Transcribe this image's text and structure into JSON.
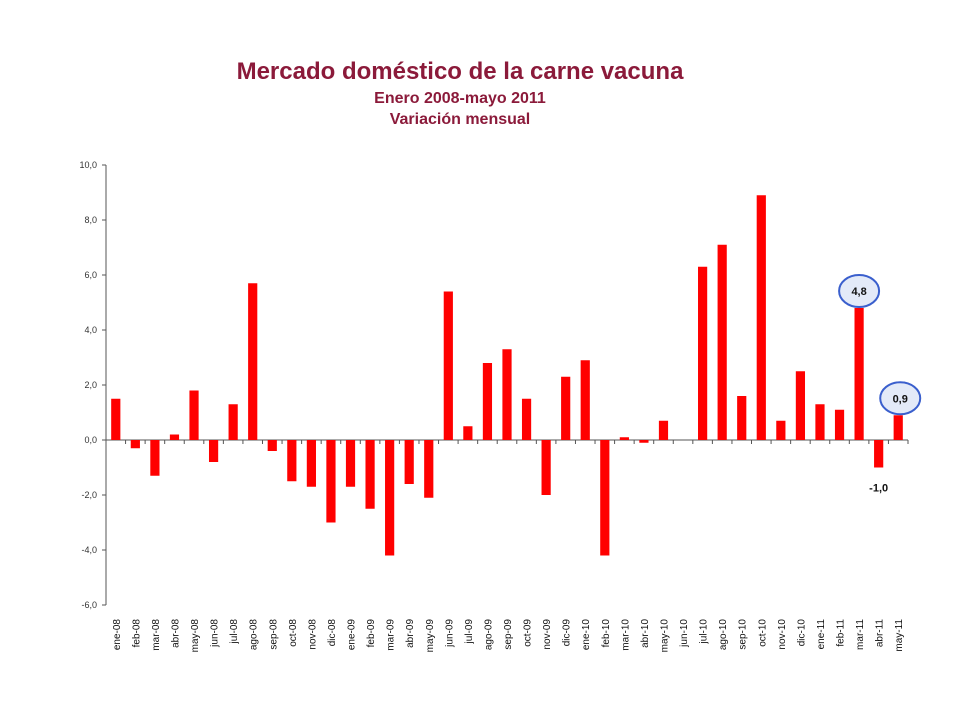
{
  "chart_data": {
    "type": "bar",
    "title": "Mercado doméstico de la carne vacuna",
    "subtitle": [
      "Enero 2008-mayo 2011",
      "Variación mensual"
    ],
    "ylim": [
      -6,
      10
    ],
    "yticks": [
      "-6,0",
      "-4,0",
      "-2,0",
      "0,0",
      "2,0",
      "4,0",
      "6,0",
      "8,0",
      "10,0"
    ],
    "ytick_values": [
      -6,
      -4,
      -2,
      0,
      2,
      4,
      6,
      8,
      10
    ],
    "categories": [
      "ene-08",
      "feb-08",
      "mar-08",
      "abr-08",
      "may-08",
      "jun-08",
      "jul-08",
      "ago-08",
      "sep-08",
      "oct-08",
      "nov-08",
      "dic-08",
      "ene-09",
      "feb-09",
      "mar-09",
      "abr-09",
      "may-09",
      "jun-09",
      "jul-09",
      "ago-09",
      "sep-09",
      "oct-09",
      "nov-09",
      "dic-09",
      "ene-10",
      "feb-10",
      "mar-10",
      "abr-10",
      "may-10",
      "jun-10",
      "jul-10",
      "ago-10",
      "sep-10",
      "oct-10",
      "nov-10",
      "dic-10",
      "ene-11",
      "feb-11",
      "mar-11",
      "abr-11",
      "may-11"
    ],
    "values": [
      1.5,
      -0.3,
      -1.3,
      0.2,
      1.8,
      -0.8,
      1.3,
      5.7,
      -0.4,
      -1.5,
      -1.7,
      -3.0,
      -1.7,
      -2.5,
      -4.2,
      -1.6,
      -2.1,
      5.4,
      0.5,
      2.8,
      3.3,
      1.5,
      -2.0,
      2.3,
      2.9,
      -4.2,
      0.1,
      -0.1,
      0.7,
      0.0,
      6.3,
      7.1,
      1.6,
      8.9,
      0.7,
      2.5,
      1.3,
      1.1,
      4.8,
      -1.0,
      0.9
    ],
    "bar_color": "#ff0000",
    "data_labels": [
      {
        "category": "mar-11",
        "text": "4,8",
        "circled": true
      },
      {
        "category": "abr-11",
        "text": "-1,0",
        "circled": false
      },
      {
        "category": "may-11",
        "text": "0,9",
        "circled": true
      }
    ],
    "circle_color": "#3a5fcd",
    "circle_fill": "#e3eaf8"
  }
}
